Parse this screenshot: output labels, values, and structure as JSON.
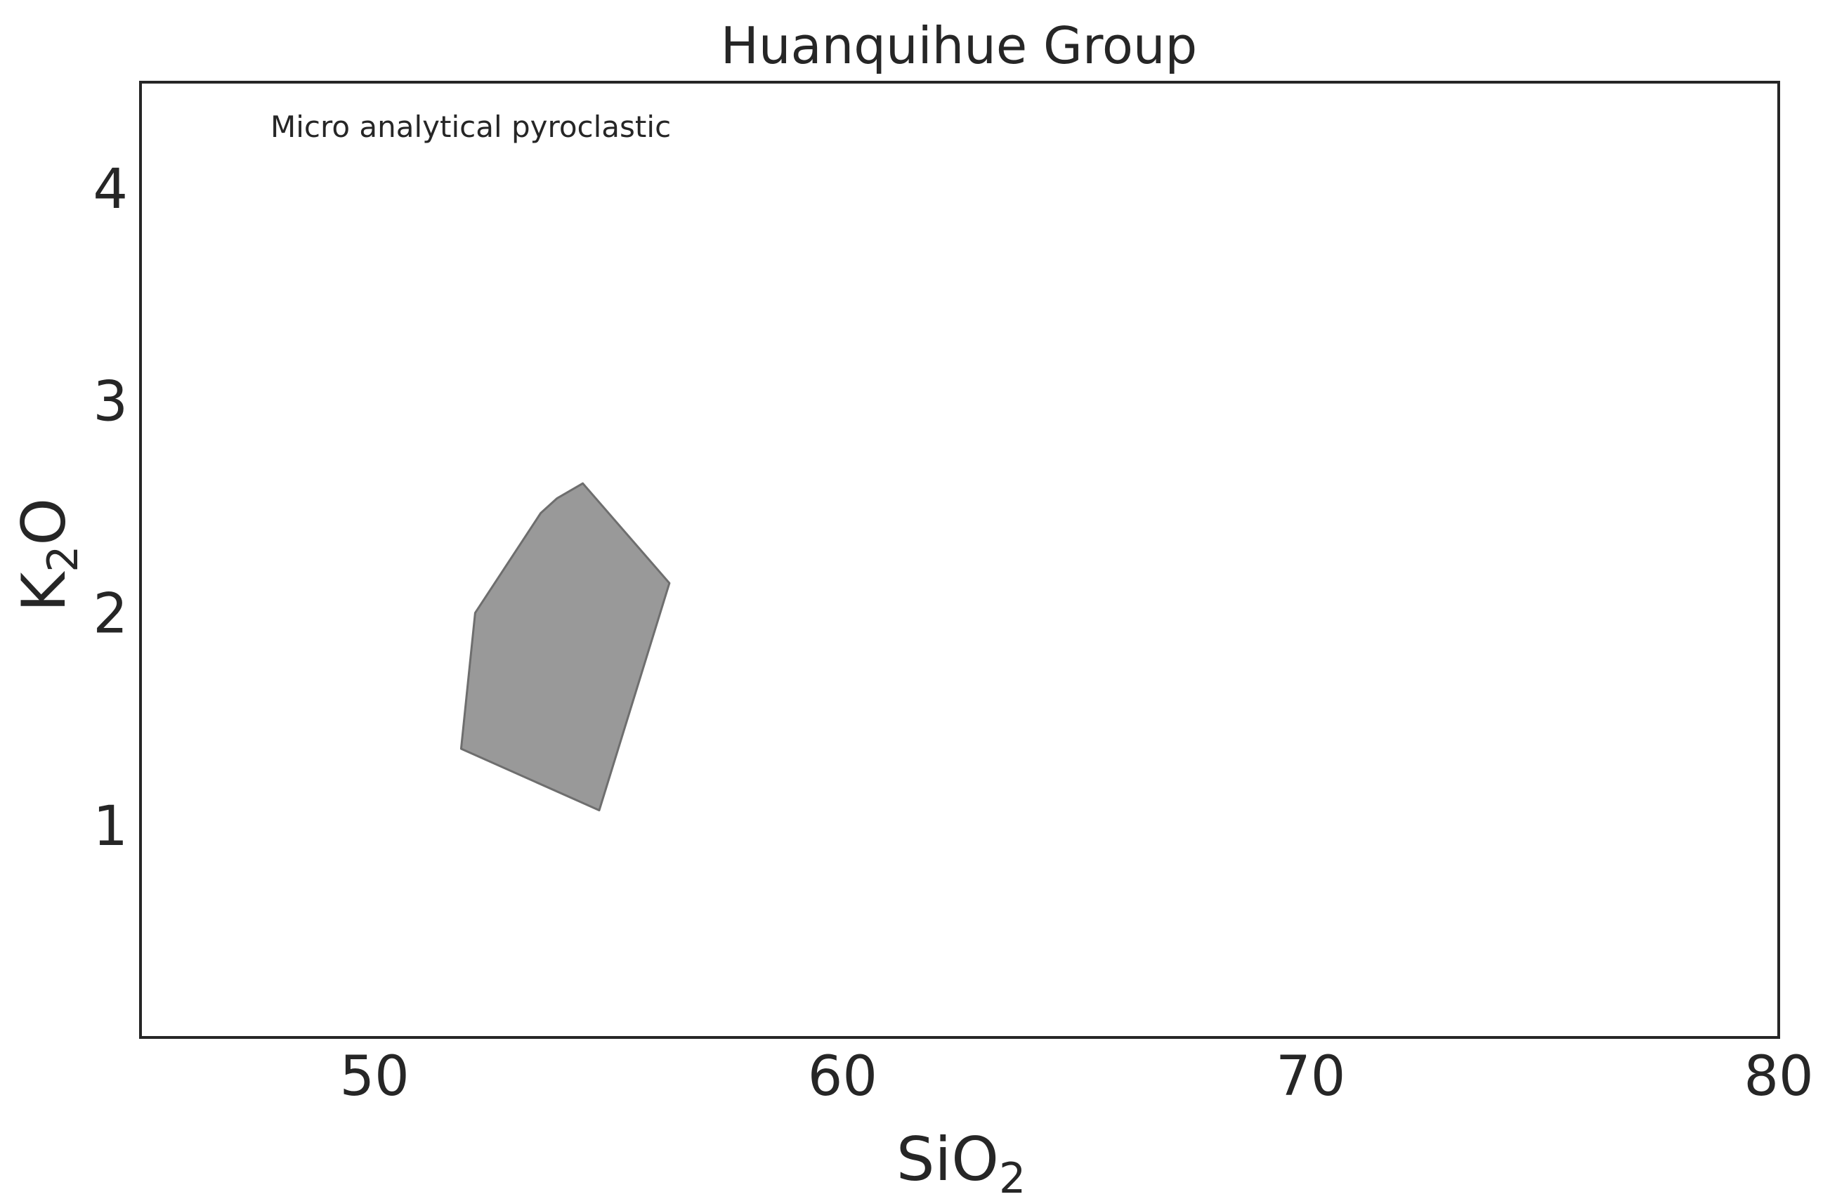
{
  "chart_data": {
    "type": "area",
    "title": "Huanquihue Group",
    "xlabel": {
      "main": "SiO",
      "sub": "2"
    },
    "ylabel": {
      "main": "K",
      "sub": "2",
      "tail": "O"
    },
    "xlim": [
      45,
      80
    ],
    "ylim": [
      0,
      4.5
    ],
    "xticks": [
      50,
      60,
      70,
      80
    ],
    "yticks": [
      1,
      2,
      3,
      4
    ],
    "grid": false,
    "annotation": "Micro analytical pyroclastic",
    "series": [
      {
        "type": "polygon",
        "fill": "#999999",
        "stroke": "#6e6e6e",
        "points": [
          [
            51.85,
            1.36
          ],
          [
            52.15,
            2.0
          ],
          [
            53.55,
            2.47
          ],
          [
            53.9,
            2.54
          ],
          [
            54.45,
            2.61
          ],
          [
            56.3,
            2.14
          ],
          [
            54.8,
            1.07
          ]
        ]
      }
    ],
    "colors": {
      "frame": "#262626",
      "text": "#262626",
      "background": "#ffffff"
    }
  }
}
